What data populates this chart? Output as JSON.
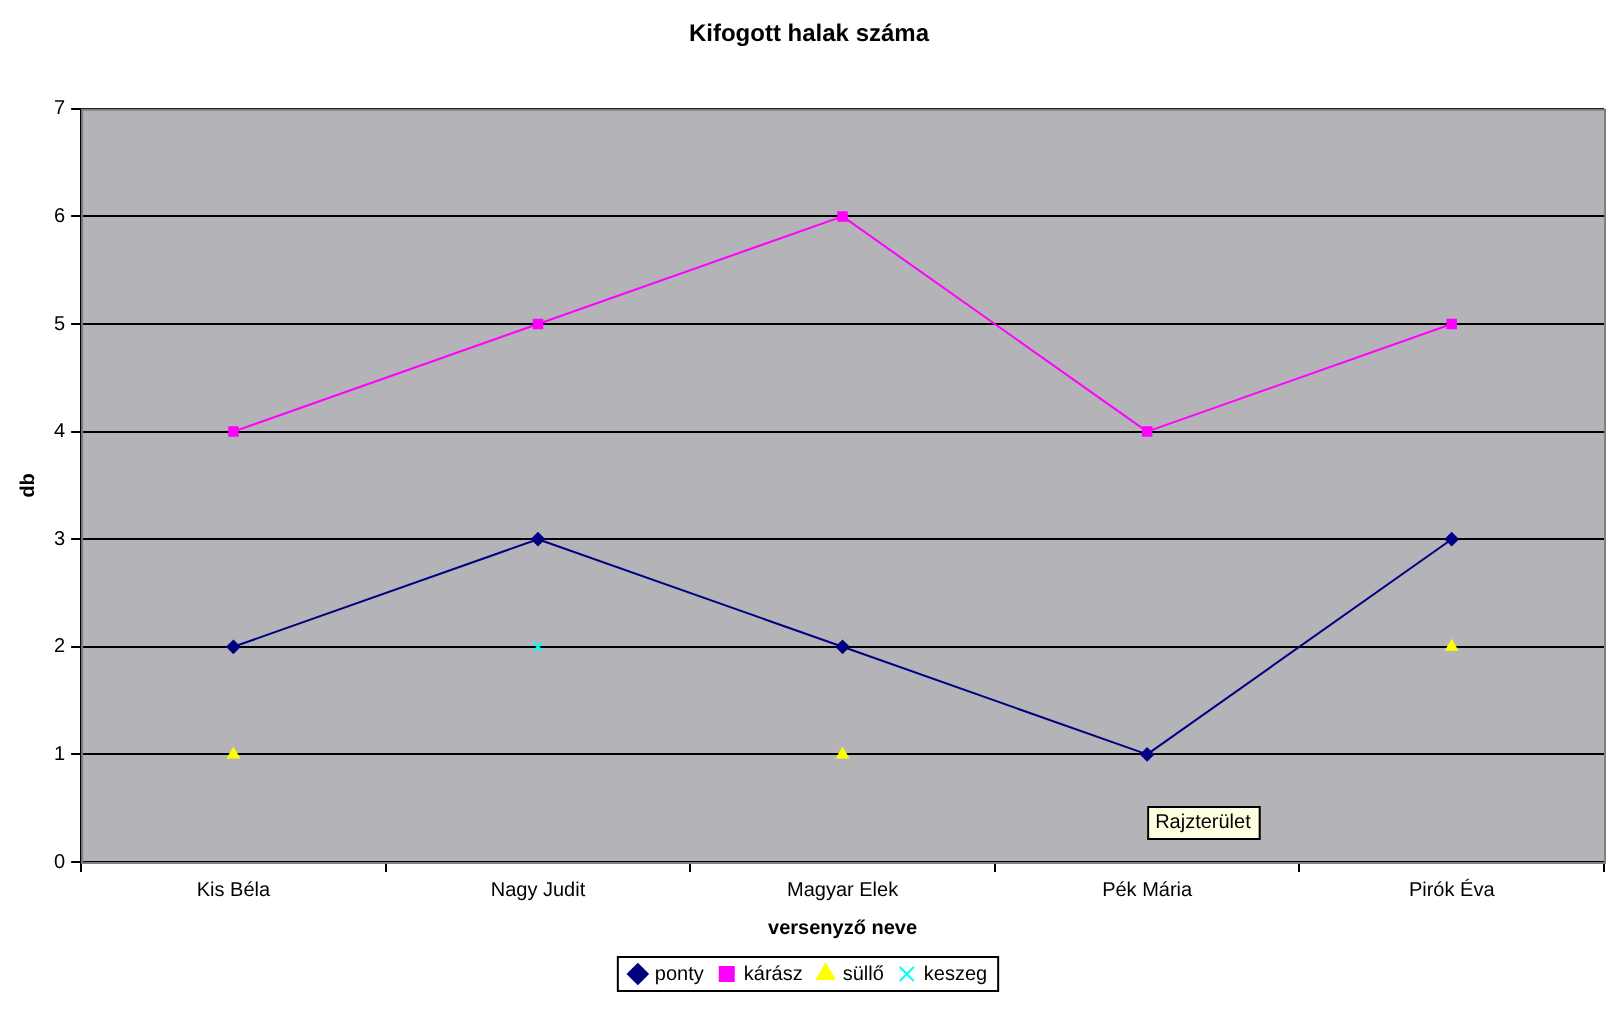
{
  "chart_data": {
    "type": "line",
    "title": "Kifogott halak száma",
    "xlabel": "versenyző neve",
    "ylabel": "db",
    "categories": [
      "Kis Béla",
      "Nagy Judit",
      "Magyar Elek",
      "Pék Mária",
      "Pirók Éva"
    ],
    "series": [
      {
        "name": "ponty",
        "color": "#000080",
        "marker": "diamond",
        "values": [
          2,
          3,
          2,
          1,
          3
        ]
      },
      {
        "name": "kárász",
        "color": "#ff00ff",
        "marker": "square",
        "values": [
          4,
          5,
          6,
          4,
          5
        ]
      },
      {
        "name": "süllő",
        "type": "scatter",
        "color": "#ffff00",
        "marker": "triangle",
        "values": [
          1,
          null,
          1,
          null,
          2
        ]
      },
      {
        "name": "keszeg",
        "type": "scatter",
        "color": "#00ffff",
        "marker": "cross",
        "values": [
          null,
          2,
          null,
          null,
          null
        ]
      }
    ],
    "ylim": [
      0,
      7
    ],
    "yticks": [
      0,
      1,
      2,
      3,
      4,
      5,
      6,
      7
    ],
    "grid": "y",
    "legend": "bottom",
    "annotations": [
      "Rajzterület"
    ]
  }
}
